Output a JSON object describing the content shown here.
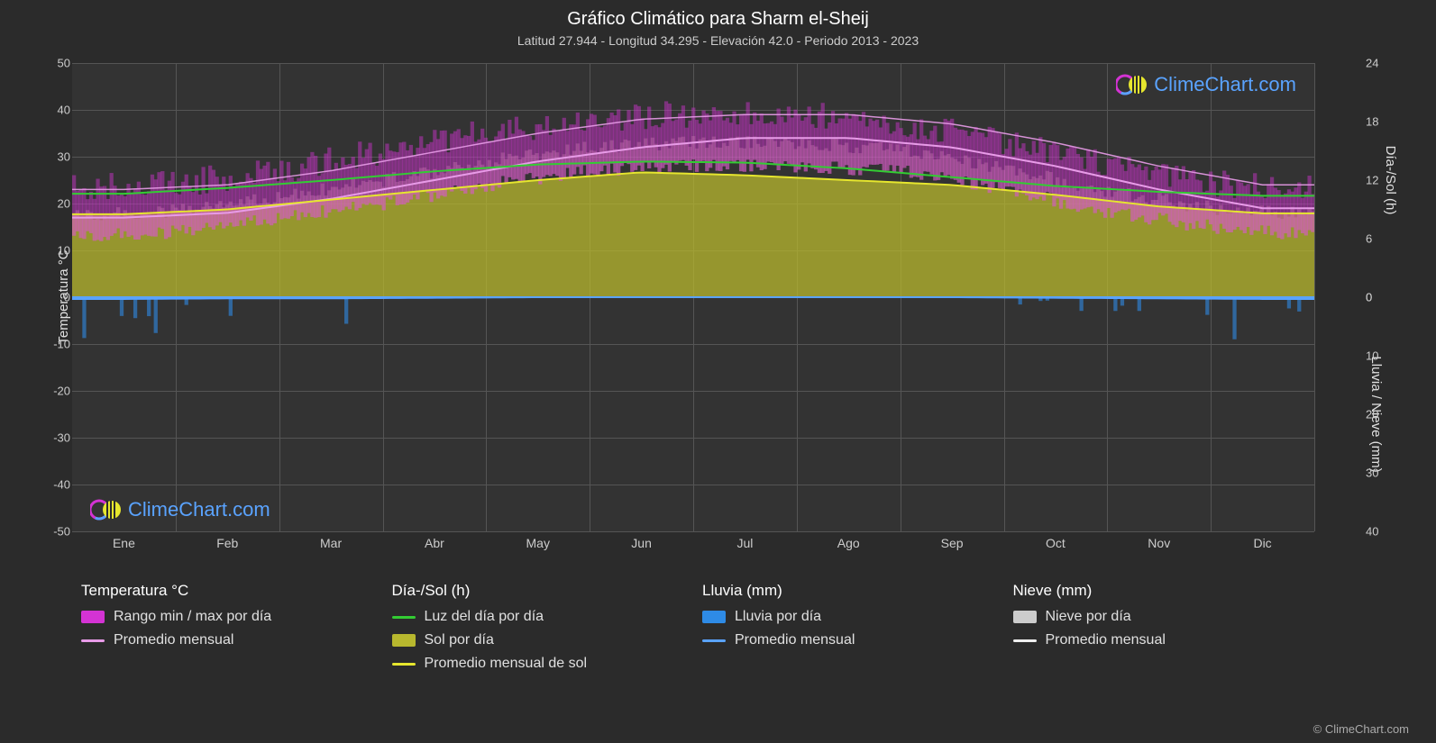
{
  "title": "Gráfico Climático para Sharm el-Sheij",
  "subtitle": "Latitud 27.944 - Longitud 34.295 - Elevación 42.0 - Periodo 2013 - 2023",
  "months": [
    "Ene",
    "Feb",
    "Mar",
    "Abr",
    "May",
    "Jun",
    "Jul",
    "Ago",
    "Sep",
    "Oct",
    "Nov",
    "Dic"
  ],
  "y_left": {
    "title": "Temperatura °C",
    "min": -50,
    "max": 50,
    "ticks": [
      50,
      40,
      30,
      20,
      10,
      0,
      -10,
      -20,
      -30,
      -40,
      -50
    ]
  },
  "y_right_top": {
    "title": "Día-/Sol (h)",
    "min": 0,
    "max": 24,
    "ticks": [
      24,
      18,
      12,
      6,
      0
    ]
  },
  "y_right_bottom": {
    "title": "Lluvia / Nieve (mm)",
    "min": 0,
    "max": 40,
    "ticks": [
      0,
      10,
      20,
      30,
      40
    ]
  },
  "series": {
    "temp_avg_monthly": [
      17,
      18,
      21,
      25,
      29,
      32,
      34,
      34,
      32,
      28,
      23,
      19
    ],
    "temp_range_low_monthly": [
      13,
      14,
      17,
      20,
      24,
      27,
      28,
      28,
      27,
      23,
      18,
      15
    ],
    "temp_range_high_monthly": [
      22,
      23,
      26,
      30,
      34,
      37,
      38,
      38,
      36,
      32,
      27,
      23
    ],
    "daylight_hours": [
      10.6,
      11.2,
      12.0,
      12.9,
      13.6,
      13.9,
      13.8,
      13.2,
      12.3,
      11.4,
      10.8,
      10.4
    ],
    "sun_hours_avg": [
      8.5,
      9.0,
      10.0,
      11.0,
      12.0,
      12.8,
      12.5,
      12.0,
      11.5,
      10.5,
      9.3,
      8.6
    ],
    "rain_avg_monthly": [
      0.3,
      0.2,
      0.2,
      0.1,
      0.0,
      0.0,
      0.0,
      0.0,
      0.0,
      0.1,
      0.2,
      0.3
    ],
    "snow_avg_monthly": [
      0,
      0,
      0,
      0,
      0,
      0,
      0,
      0,
      0,
      0,
      0,
      0
    ]
  },
  "colors": {
    "bg": "#2b2b2b",
    "plot_bg": "#333333",
    "grid": "#555555",
    "temp_range_fill": "#d433d4",
    "temp_range_fill_soft": "#d67db9",
    "temp_avg_line": "#e89be8",
    "daylight_line": "#33cc33",
    "sun_fill": "#b8b82e",
    "sun_avg_line": "#e6e62e",
    "rain_fill": "#2e8be6",
    "rain_avg_line": "#5aa3ff",
    "snow_fill": "#cccccc",
    "snow_avg_line": "#eeeeee",
    "text": "#e0e0e0",
    "title_text": "#ffffff",
    "sub_text": "#cccccc",
    "watermark_text": "#5aa3ff"
  },
  "legend": {
    "cols": [
      {
        "header": "Temperatura °C",
        "items": [
          {
            "swatch": "#d433d4",
            "type": "block",
            "label": "Rango min / max por día"
          },
          {
            "swatch": "#e89be8",
            "type": "line",
            "label": "Promedio mensual"
          }
        ]
      },
      {
        "header": "Día-/Sol (h)",
        "items": [
          {
            "swatch": "#33cc33",
            "type": "line",
            "label": "Luz del día por día"
          },
          {
            "swatch": "#b8b82e",
            "type": "block",
            "label": "Sol por día"
          },
          {
            "swatch": "#e6e62e",
            "type": "line",
            "label": "Promedio mensual de sol"
          }
        ]
      },
      {
        "header": "Lluvia (mm)",
        "items": [
          {
            "swatch": "#2e8be6",
            "type": "block",
            "label": "Lluvia por día"
          },
          {
            "swatch": "#5aa3ff",
            "type": "line",
            "label": "Promedio mensual"
          }
        ]
      },
      {
        "header": "Nieve (mm)",
        "items": [
          {
            "swatch": "#cccccc",
            "type": "block",
            "label": "Nieve por día"
          },
          {
            "swatch": "#eeeeee",
            "type": "line",
            "label": "Promedio mensual"
          }
        ]
      }
    ]
  },
  "watermark": "ClimeChart.com",
  "copyright": "© ClimeChart.com"
}
